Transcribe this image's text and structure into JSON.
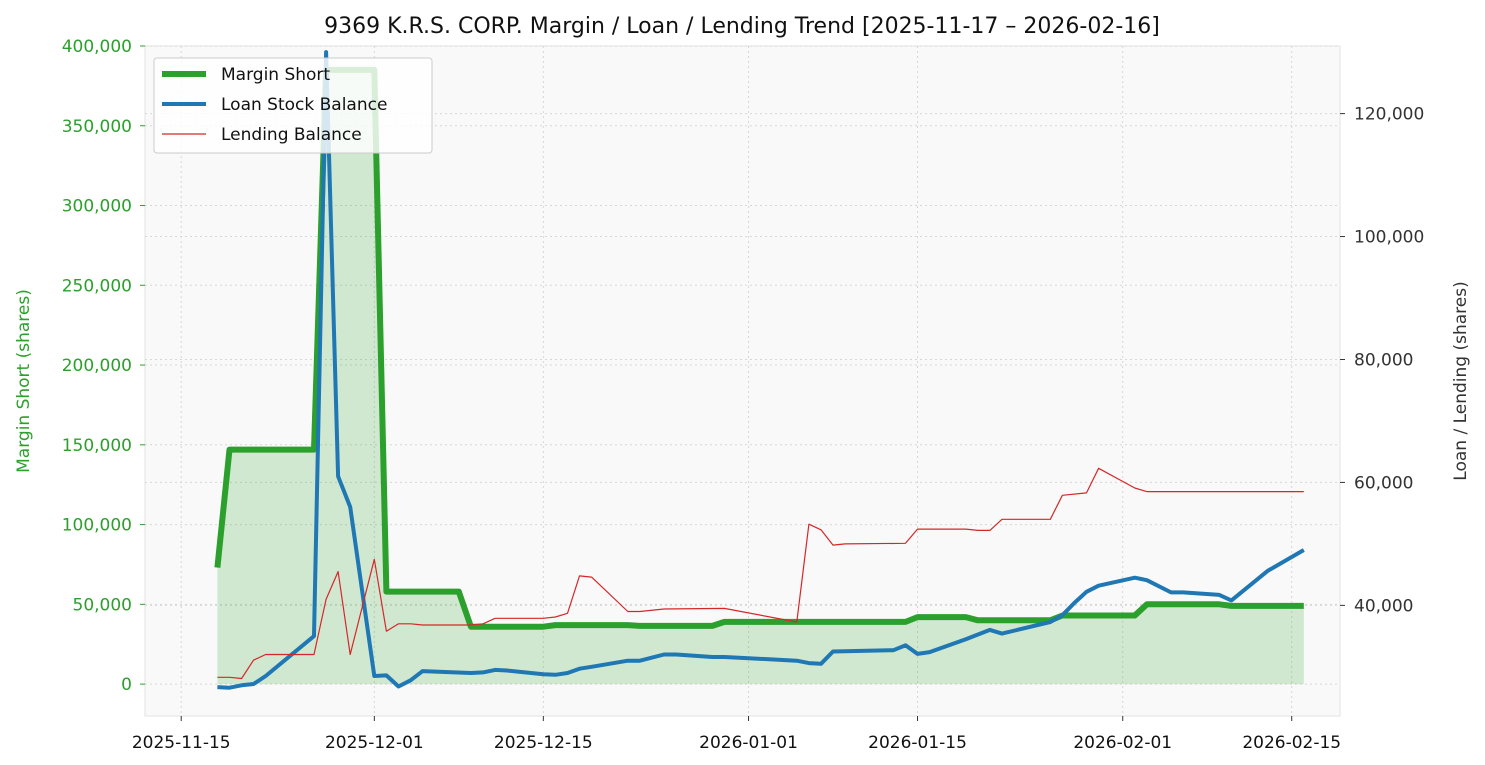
{
  "chart_data": {
    "type": "line",
    "title": "9369 K.R.S. CORP. Margin / Loan / Lending Trend [2025-11-17 – 2026-02-16]",
    "ylabel_left": "Margin Short (shares)",
    "ylabel_right": "Loan / Lending (shares)",
    "xlabel": "",
    "left_ylim": [
      -20000,
      400000
    ],
    "left_ticks": [
      0,
      50000,
      100000,
      150000,
      200000,
      250000,
      300000,
      350000,
      400000
    ],
    "left_tick_labels": [
      "0",
      "50,000",
      "100,000",
      "150,000",
      "200,000",
      "250,000",
      "300,000",
      "350,000",
      "400,000"
    ],
    "right_ylim": [
      22000,
      131000
    ],
    "right_ticks": [
      40000,
      60000,
      80000,
      100000,
      120000
    ],
    "right_tick_labels": [
      "40,000",
      "60,000",
      "80,000",
      "100,000",
      "120,000"
    ],
    "x_range": [
      "2025-11-12",
      "2026-02-19"
    ],
    "x_ticks": [
      "2025-11-15",
      "2025-12-01",
      "2025-12-15",
      "2026-01-01",
      "2026-01-15",
      "2026-02-01",
      "2026-02-15"
    ],
    "grid": true,
    "legend_position": "top-left",
    "series": [
      {
        "name": "Margin Short",
        "axis": "left",
        "color": "#2ca02c",
        "fill": true,
        "points": [
          [
            "2025-11-18",
            73000
          ],
          [
            "2025-11-19",
            147000
          ],
          [
            "2025-11-26",
            147000
          ],
          [
            "2025-11-27",
            385000
          ],
          [
            "2025-12-01",
            385000
          ],
          [
            "2025-12-02",
            58000
          ],
          [
            "2025-12-08",
            58000
          ],
          [
            "2025-12-09",
            36000
          ],
          [
            "2025-12-15",
            36000
          ],
          [
            "2025-12-16",
            37000
          ],
          [
            "2025-12-22",
            37000
          ],
          [
            "2025-12-23",
            36500
          ],
          [
            "2025-12-29",
            36500
          ],
          [
            "2025-12-30",
            39000
          ],
          [
            "2026-01-14",
            39000
          ],
          [
            "2026-01-15",
            42000
          ],
          [
            "2026-01-19",
            42000
          ],
          [
            "2026-01-20",
            40000
          ],
          [
            "2026-01-26",
            40000
          ],
          [
            "2026-01-27",
            43000
          ],
          [
            "2026-02-02",
            43000
          ],
          [
            "2026-02-03",
            50000
          ],
          [
            "2026-02-09",
            50000
          ],
          [
            "2026-02-10",
            49000
          ],
          [
            "2026-02-16",
            49000
          ]
        ]
      },
      {
        "name": "Loan Stock Balance",
        "axis": "right",
        "color": "#1f77b4",
        "fill": false,
        "points": [
          [
            "2025-11-18",
            26700
          ],
          [
            "2025-11-19",
            26600
          ],
          [
            "2025-11-20",
            27000
          ],
          [
            "2025-11-21",
            27200
          ],
          [
            "2025-11-22",
            28500
          ],
          [
            "2025-11-26",
            35000
          ],
          [
            "2025-11-27",
            130000
          ],
          [
            "2025-11-28",
            61000
          ],
          [
            "2025-11-29",
            56000
          ],
          [
            "2025-12-01",
            28500
          ],
          [
            "2025-12-02",
            28600
          ],
          [
            "2025-12-03",
            26800
          ],
          [
            "2025-12-04",
            27800
          ],
          [
            "2025-12-05",
            29300
          ],
          [
            "2025-12-09",
            29000
          ],
          [
            "2025-12-10",
            29100
          ],
          [
            "2025-12-11",
            29500
          ],
          [
            "2025-12-12",
            29400
          ],
          [
            "2025-12-15",
            28800
          ],
          [
            "2025-12-16",
            28700
          ],
          [
            "2025-12-17",
            29000
          ],
          [
            "2025-12-18",
            29700
          ],
          [
            "2025-12-19",
            30000
          ],
          [
            "2025-12-22",
            31000
          ],
          [
            "2025-12-23",
            31000
          ],
          [
            "2025-12-25",
            32000
          ],
          [
            "2025-12-26",
            32000
          ],
          [
            "2025-12-29",
            31600
          ],
          [
            "2025-12-30",
            31600
          ],
          [
            "2026-01-05",
            31000
          ],
          [
            "2026-01-06",
            30600
          ],
          [
            "2026-01-07",
            30500
          ],
          [
            "2026-01-08",
            32500
          ],
          [
            "2026-01-13",
            32700
          ],
          [
            "2026-01-14",
            33500
          ],
          [
            "2026-01-15",
            32100
          ],
          [
            "2026-01-16",
            32400
          ],
          [
            "2026-01-19",
            34500
          ],
          [
            "2026-01-21",
            36000
          ],
          [
            "2026-01-22",
            35400
          ],
          [
            "2026-01-26",
            37300
          ],
          [
            "2026-01-27",
            38400
          ],
          [
            "2026-01-28",
            40400
          ],
          [
            "2026-01-29",
            42200
          ],
          [
            "2026-01-30",
            43200
          ],
          [
            "2026-02-02",
            44500
          ],
          [
            "2026-02-03",
            44100
          ],
          [
            "2026-02-05",
            42100
          ],
          [
            "2026-02-06",
            42100
          ],
          [
            "2026-02-09",
            41700
          ],
          [
            "2026-02-10",
            40800
          ],
          [
            "2026-02-13",
            45600
          ],
          [
            "2026-02-16",
            49000
          ]
        ]
      },
      {
        "name": "Lending Balance",
        "axis": "right",
        "color": "#d62728",
        "fill": false,
        "points": [
          [
            "2025-11-18",
            28300
          ],
          [
            "2025-11-19",
            28300
          ],
          [
            "2025-11-20",
            28100
          ],
          [
            "2025-11-21",
            31100
          ],
          [
            "2025-11-22",
            32000
          ],
          [
            "2025-11-26",
            32000
          ],
          [
            "2025-11-27",
            41000
          ],
          [
            "2025-11-28",
            45500
          ],
          [
            "2025-11-29",
            32000
          ],
          [
            "2025-12-01",
            47500
          ],
          [
            "2025-12-02",
            35800
          ],
          [
            "2025-12-03",
            37000
          ],
          [
            "2025-12-04",
            37000
          ],
          [
            "2025-12-05",
            36800
          ],
          [
            "2025-12-09",
            36800
          ],
          [
            "2025-12-10",
            37000
          ],
          [
            "2025-12-11",
            37900
          ],
          [
            "2025-12-15",
            37900
          ],
          [
            "2025-12-16",
            38100
          ],
          [
            "2025-12-17",
            38700
          ],
          [
            "2025-12-18",
            44800
          ],
          [
            "2025-12-19",
            44600
          ],
          [
            "2025-12-22",
            39000
          ],
          [
            "2025-12-23",
            39000
          ],
          [
            "2025-12-25",
            39400
          ],
          [
            "2025-12-30",
            39500
          ],
          [
            "2026-01-05",
            37300
          ],
          [
            "2026-01-06",
            53200
          ],
          [
            "2026-01-07",
            52300
          ],
          [
            "2026-01-08",
            49800
          ],
          [
            "2026-01-09",
            50000
          ],
          [
            "2026-01-14",
            50100
          ],
          [
            "2026-01-15",
            52400
          ],
          [
            "2026-01-19",
            52400
          ],
          [
            "2026-01-20",
            52200
          ],
          [
            "2026-01-21",
            52200
          ],
          [
            "2026-01-22",
            54000
          ],
          [
            "2026-01-26",
            54000
          ],
          [
            "2026-01-27",
            57900
          ],
          [
            "2026-01-29",
            58300
          ],
          [
            "2026-01-30",
            62300
          ],
          [
            "2026-02-02",
            59100
          ],
          [
            "2026-02-03",
            58500
          ],
          [
            "2026-02-16",
            58500
          ]
        ]
      }
    ]
  }
}
